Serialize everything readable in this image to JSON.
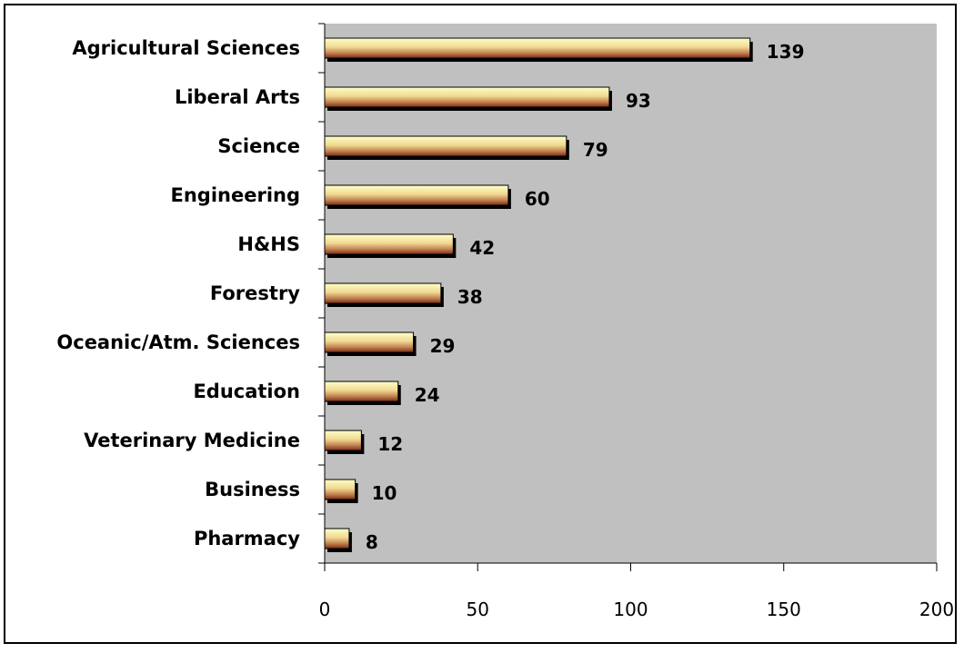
{
  "chart_data": {
    "type": "bar",
    "orientation": "horizontal",
    "title": "",
    "xlabel": "",
    "ylabel": "",
    "categories": [
      "Agricultural Sciences",
      "Liberal Arts",
      "Science",
      "Engineering",
      "H&HS",
      "Forestry",
      "Oceanic/Atm. Sciences",
      "Education",
      "Veterinary Medicine",
      "Business",
      "Pharmacy"
    ],
    "values": [
      139,
      93,
      79,
      60,
      42,
      38,
      29,
      24,
      12,
      10,
      8
    ],
    "data_labels": [
      "139",
      "93",
      "79",
      "60",
      "42",
      "38",
      "29",
      "24",
      "12",
      "10",
      "8"
    ],
    "xlim": [
      0,
      200
    ],
    "xticks": [
      0,
      50,
      100,
      150,
      200
    ],
    "xtick_labels": [
      "0",
      "50",
      "100",
      "150",
      "200"
    ],
    "grid": false,
    "legend": "none",
    "colors": {
      "plot_background": "#c0c0c0",
      "bar_light": "#ffffc0",
      "bar_mid": "#e8c878",
      "bar_dark": "#8b3a1a",
      "bar_shadow": "#000000"
    }
  }
}
